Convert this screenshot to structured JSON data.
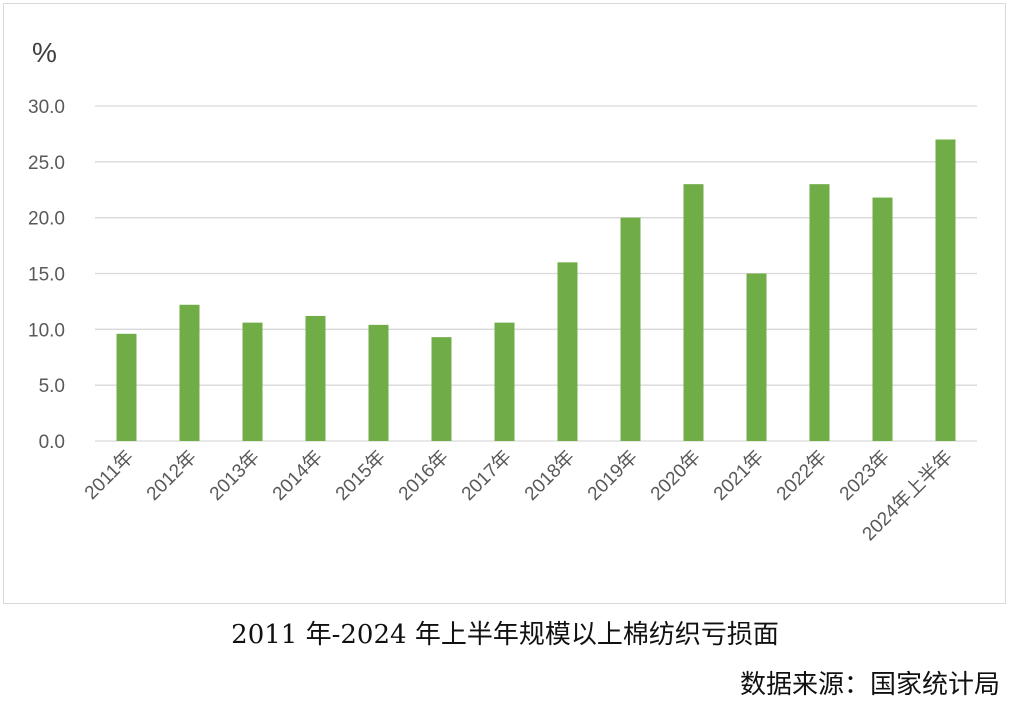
{
  "chart_data": {
    "type": "bar",
    "unit": "%",
    "categories": [
      "2011年",
      "2012年",
      "2013年",
      "2014年",
      "2015年",
      "2016年",
      "2017年",
      "2018年",
      "2019年",
      "2020年",
      "2021年",
      "2022年",
      "2023年",
      "2024年上半年"
    ],
    "values": [
      9.6,
      12.2,
      10.6,
      11.2,
      10.4,
      9.3,
      10.6,
      16.0,
      20.0,
      23.0,
      15.0,
      23.0,
      21.8,
      27.0
    ],
    "ylim": [
      0,
      30
    ],
    "yticks": [
      "0.0",
      "5.0",
      "10.0",
      "15.0",
      "20.0",
      "25.0",
      "30.0"
    ],
    "grid": true,
    "bar_color": "#70ad47",
    "grid_color": "#d9d9d9"
  },
  "caption": "2011 年-2024 年上半年规模以上棉纺织亏损面",
  "source": "数据来源：国家统计局"
}
